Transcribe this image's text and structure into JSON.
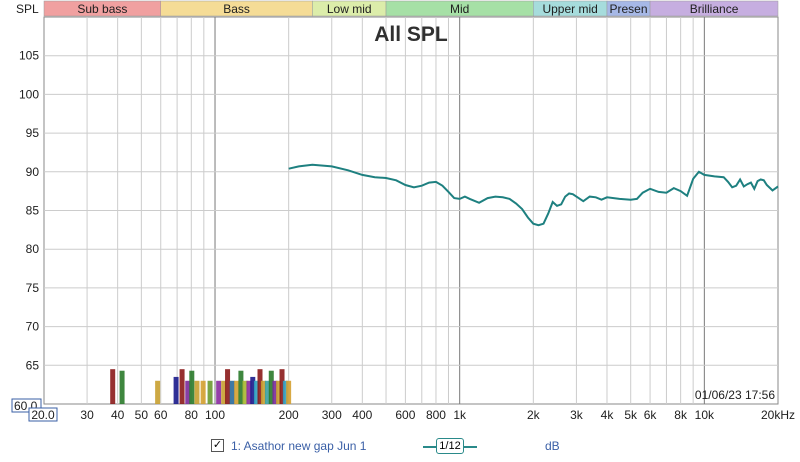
{
  "chart_data": {
    "type": "line",
    "title": "All SPL",
    "ylabel": "SPL",
    "xlabel": "",
    "x_scale": "log",
    "xlim": [
      20,
      20000
    ],
    "ylim": [
      60,
      110
    ],
    "y_ticks": [
      105,
      100,
      95,
      90,
      85,
      80,
      75,
      70,
      65
    ],
    "y_min_label": "60.0",
    "x_ticks": [
      {
        "v": 20,
        "label": "20.0"
      },
      {
        "v": 30,
        "label": "30"
      },
      {
        "v": 40,
        "label": "40"
      },
      {
        "v": 50,
        "label": "50"
      },
      {
        "v": 60,
        "label": "60"
      },
      {
        "v": 80,
        "label": "80"
      },
      {
        "v": 100,
        "label": "100"
      },
      {
        "v": 200,
        "label": "200"
      },
      {
        "v": 300,
        "label": "300"
      },
      {
        "v": 400,
        "label": "400"
      },
      {
        "v": 600,
        "label": "600"
      },
      {
        "v": 800,
        "label": "800"
      },
      {
        "v": 1000,
        "label": "1k"
      },
      {
        "v": 2000,
        "label": "2k"
      },
      {
        "v": 3000,
        "label": "3k"
      },
      {
        "v": 4000,
        "label": "4k"
      },
      {
        "v": 5000,
        "label": "5k"
      },
      {
        "v": 6000,
        "label": "6k"
      },
      {
        "v": 8000,
        "label": "8k"
      },
      {
        "v": 10000,
        "label": "10k"
      },
      {
        "v": 20000,
        "label": "20kHz"
      }
    ],
    "bands": [
      {
        "label": "Sub bass",
        "from": 20,
        "to": 60,
        "color": "#f0a0a0"
      },
      {
        "label": "Bass",
        "from": 60,
        "to": 250,
        "color": "#f5dc96"
      },
      {
        "label": "Low mid",
        "from": 250,
        "to": 500,
        "color": "#dcedaa"
      },
      {
        "label": "Mid",
        "from": 500,
        "to": 2000,
        "color": "#a6e0a6"
      },
      {
        "label": "Upper mid",
        "from": 2000,
        "to": 4000,
        "color": "#a6dcdc"
      },
      {
        "label": "Presen",
        "from": 4000,
        "to": 6000,
        "color": "#a6b8e6"
      },
      {
        "label": "Brilliance",
        "from": 6000,
        "to": 20000,
        "color": "#c6aee0"
      }
    ],
    "series": [
      {
        "name": "1: Asathor new gap Jun 1",
        "color": "#1e8080",
        "points": [
          [
            200,
            90.4
          ],
          [
            220,
            90.7
          ],
          [
            250,
            90.9
          ],
          [
            300,
            90.7
          ],
          [
            350,
            90.2
          ],
          [
            400,
            89.6
          ],
          [
            450,
            89.3
          ],
          [
            500,
            89.2
          ],
          [
            550,
            88.9
          ],
          [
            600,
            88.3
          ],
          [
            650,
            88.0
          ],
          [
            700,
            88.2
          ],
          [
            750,
            88.6
          ],
          [
            800,
            88.7
          ],
          [
            850,
            88.2
          ],
          [
            900,
            87.4
          ],
          [
            950,
            86.6
          ],
          [
            1000,
            86.5
          ],
          [
            1050,
            86.8
          ],
          [
            1100,
            86.5
          ],
          [
            1200,
            86.0
          ],
          [
            1300,
            86.6
          ],
          [
            1400,
            86.8
          ],
          [
            1500,
            86.7
          ],
          [
            1600,
            86.5
          ],
          [
            1700,
            85.9
          ],
          [
            1800,
            85.2
          ],
          [
            1900,
            84.1
          ],
          [
            2000,
            83.3
          ],
          [
            2100,
            83.1
          ],
          [
            2200,
            83.3
          ],
          [
            2300,
            84.6
          ],
          [
            2400,
            86.1
          ],
          [
            2500,
            85.6
          ],
          [
            2600,
            85.8
          ],
          [
            2700,
            86.8
          ],
          [
            2800,
            87.2
          ],
          [
            2900,
            87.1
          ],
          [
            3000,
            86.8
          ],
          [
            3200,
            86.2
          ],
          [
            3400,
            86.8
          ],
          [
            3600,
            86.7
          ],
          [
            3800,
            86.4
          ],
          [
            4000,
            86.7
          ],
          [
            4500,
            86.5
          ],
          [
            5000,
            86.4
          ],
          [
            5300,
            86.5
          ],
          [
            5600,
            87.3
          ],
          [
            6000,
            87.8
          ],
          [
            6500,
            87.4
          ],
          [
            7000,
            87.3
          ],
          [
            7500,
            87.9
          ],
          [
            8000,
            87.5
          ],
          [
            8500,
            86.9
          ],
          [
            9000,
            89.1
          ],
          [
            9500,
            90.0
          ],
          [
            10000,
            89.6
          ],
          [
            11000,
            89.4
          ],
          [
            12000,
            89.3
          ],
          [
            12500,
            88.7
          ],
          [
            13000,
            88.0
          ],
          [
            13500,
            88.2
          ],
          [
            14000,
            89.0
          ],
          [
            14500,
            88.1
          ],
          [
            15000,
            88.4
          ],
          [
            15500,
            88.6
          ],
          [
            16000,
            87.8
          ],
          [
            16500,
            88.8
          ],
          [
            17000,
            89.0
          ],
          [
            17500,
            88.9
          ],
          [
            18000,
            88.3
          ],
          [
            19000,
            87.6
          ],
          [
            20000,
            88.1
          ]
        ]
      }
    ],
    "peaks": [
      {
        "f": 38,
        "v": 64.5,
        "color": "#8b1a1a"
      },
      {
        "f": 41.5,
        "v": 64.3,
        "color": "#2a7a2a"
      },
      {
        "f": 58,
        "v": 63.0,
        "color": "#c8a030"
      },
      {
        "f": 69,
        "v": 63.5,
        "color": "#1a1a8b"
      },
      {
        "f": 73,
        "v": 64.5,
        "color": "#8b1a1a"
      },
      {
        "f": 77,
        "v": 63.0,
        "color": "#7a2a9a"
      },
      {
        "f": 80,
        "v": 64.3,
        "color": "#2a7a2a"
      },
      {
        "f": 84,
        "v": 63.0,
        "color": "#c8a030"
      },
      {
        "f": 89,
        "v": 63.0,
        "color": "#d4a030"
      },
      {
        "f": 95,
        "v": 63.0,
        "color": "#6a9a30"
      },
      {
        "f": 103,
        "v": 63.0,
        "color": "#8a2aa0"
      },
      {
        "f": 108,
        "v": 63.0,
        "color": "#c8a030"
      },
      {
        "f": 112,
        "v": 64.5,
        "color": "#8b1a1a"
      },
      {
        "f": 117,
        "v": 63.0,
        "color": "#2a6a9a"
      },
      {
        "f": 122,
        "v": 63.0,
        "color": "#d4a030"
      },
      {
        "f": 127,
        "v": 64.3,
        "color": "#2a7a2a"
      },
      {
        "f": 132,
        "v": 63.0,
        "color": "#a8b830"
      },
      {
        "f": 137,
        "v": 63.0,
        "color": "#8a2aa0"
      },
      {
        "f": 142,
        "v": 63.5,
        "color": "#1a1a8b"
      },
      {
        "f": 147,
        "v": 63.0,
        "color": "#30a0c0"
      },
      {
        "f": 152,
        "v": 64.5,
        "color": "#8b1a1a"
      },
      {
        "f": 157,
        "v": 63.0,
        "color": "#c8a030"
      },
      {
        "f": 163,
        "v": 63.0,
        "color": "#3aa0a0"
      },
      {
        "f": 169,
        "v": 64.3,
        "color": "#2a7a2a"
      },
      {
        "f": 175,
        "v": 63.0,
        "color": "#7a2a9a"
      },
      {
        "f": 181,
        "v": 63.0,
        "color": "#c8a030"
      },
      {
        "f": 187,
        "v": 64.5,
        "color": "#8b1a1a"
      },
      {
        "f": 193,
        "v": 63.0,
        "color": "#30a0c0"
      },
      {
        "f": 199,
        "v": 63.0,
        "color": "#d4a030"
      }
    ],
    "timestamp": "01/06/23 17:56"
  },
  "footer": {
    "checkbox_mark": "✓",
    "series_label": "1: Asathor new gap Jun 1",
    "smoothing": "1/12",
    "unit": "dB"
  }
}
